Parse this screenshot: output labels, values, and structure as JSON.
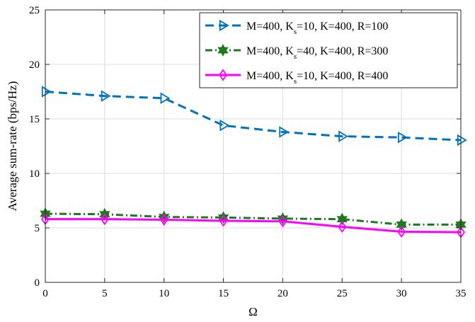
{
  "chart_data": {
    "type": "line",
    "xlabel": "Ω",
    "ylabel": "Average sum-rate (bps/Hz)",
    "xlim": [
      0,
      35
    ],
    "ylim": [
      0,
      25
    ],
    "xticks": [
      0,
      5,
      10,
      15,
      20,
      25,
      30,
      35
    ],
    "yticks": [
      0,
      5,
      10,
      15,
      20,
      25
    ],
    "grid": true,
    "legend_position": "top-right",
    "x": [
      0,
      5,
      10,
      15,
      20,
      25,
      30,
      35
    ],
    "series": [
      {
        "name_parts": [
          "M=400, K",
          "s",
          "=10, K=400, R=100"
        ],
        "values": [
          17.5,
          17.1,
          16.9,
          14.4,
          13.8,
          13.4,
          13.3,
          13.05
        ],
        "color": "#0072BD",
        "line_style": "dashed",
        "marker": "triangle-right"
      },
      {
        "name_parts": [
          "M=400, K",
          "s",
          "=40, K=400, R=300"
        ],
        "values": [
          6.3,
          6.25,
          6.0,
          5.95,
          5.85,
          5.8,
          5.3,
          5.3
        ],
        "color": "#1B7A1B",
        "line_style": "dash-dot",
        "marker": "hexagram"
      },
      {
        "name_parts": [
          "M=400, K",
          "s",
          "=10, K=400, R=400"
        ],
        "values": [
          5.8,
          5.8,
          5.75,
          5.65,
          5.6,
          5.1,
          4.65,
          4.6
        ],
        "color": "#FF00FF",
        "line_style": "solid",
        "marker": "diamond"
      }
    ]
  }
}
